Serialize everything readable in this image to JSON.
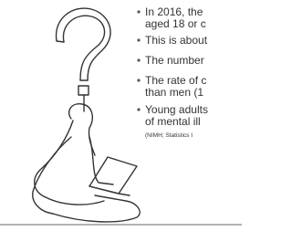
{
  "bullets": [
    {
      "lines": [
        "In 2016, the",
        "aged 18 or c"
      ]
    },
    {
      "lines": [
        "This is about"
      ]
    },
    {
      "lines": [
        "The number"
      ]
    },
    {
      "lines": [
        "The rate of c",
        "than men (1"
      ]
    },
    {
      "lines": [
        "Young adults",
        "of mental ill"
      ]
    }
  ],
  "source": "(NIMH; Statistics I"
}
